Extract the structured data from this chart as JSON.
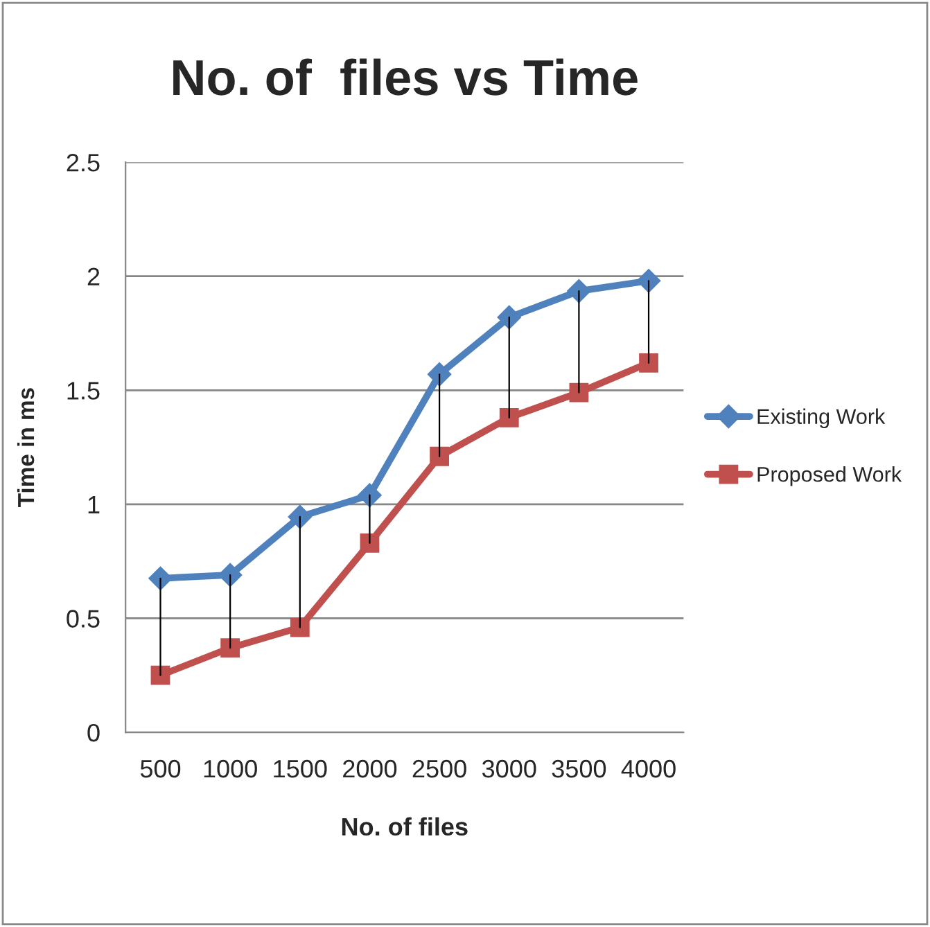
{
  "chart_data": {
    "type": "line",
    "title": "No. of  files vs Time",
    "xlabel": "No. of files",
    "ylabel": "Time in ms",
    "categories": [
      "500",
      "1000",
      "1500",
      "2000",
      "2500",
      "3000",
      "3500",
      "4000"
    ],
    "series": [
      {
        "name": "Existing Work",
        "color": "#4f81bd",
        "marker": "diamond",
        "values": [
          0.675,
          0.69,
          0.945,
          1.04,
          1.57,
          1.82,
          1.935,
          1.98
        ],
        "errors": [
          [
            0.25,
            0.675
          ],
          [
            0.37,
            0.69
          ],
          [
            0.46,
            0.945
          ],
          [
            0.83,
            1.04
          ],
          [
            1.21,
            1.57
          ],
          [
            1.38,
            1.82
          ],
          [
            1.49,
            1.935
          ],
          [
            1.62,
            1.98
          ]
        ]
      },
      {
        "name": "Proposed Work",
        "color": "#c0504d",
        "marker": "square",
        "values": [
          0.25,
          0.37,
          0.46,
          0.83,
          1.21,
          1.38,
          1.49,
          1.62
        ]
      }
    ],
    "ylim": [
      0,
      2.5
    ],
    "yticks": [
      0,
      0.5,
      1,
      1.5,
      2,
      2.5
    ],
    "grid": "y",
    "legend": "right"
  }
}
